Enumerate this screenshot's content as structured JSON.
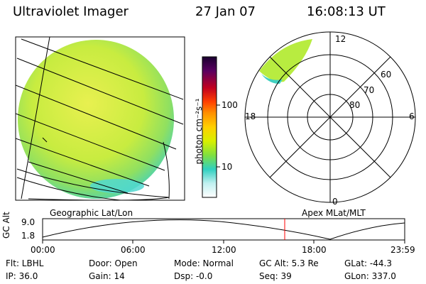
{
  "header": {
    "instrument": "Ultraviolet Imager",
    "date": "27 Jan 07",
    "time": "16:08:13 UT"
  },
  "colorbar": {
    "unit_label": "photon cm⁻²s⁻¹",
    "tick_100": "100",
    "tick_10": "10",
    "colors": [
      "#1a0030",
      "#5a0060",
      "#c00020",
      "#ff4000",
      "#ff9000",
      "#ffd000",
      "#d8f000",
      "#80e040",
      "#30d0c0",
      "#c0f0f0",
      "#ffffff"
    ]
  },
  "polar_plot": {
    "mlt_top": "12",
    "mlt_left": "18",
    "mlt_right": "6",
    "mlt_bottom": "0",
    "lat_60": "60",
    "lat_70": "70",
    "lat_80": "80"
  },
  "labels": {
    "left_panel": "Geographic Lat/Lon",
    "right_panel": "Apex MLat/MLT"
  },
  "altitude_plot": {
    "y_label": "GC Alt",
    "y_max": "9.0",
    "y_min": "1.8",
    "x_ticks": [
      "00:00",
      "06:00",
      "12:00",
      "18:00",
      "23:59"
    ],
    "marker_color": "#ff0000"
  },
  "info": {
    "filter": "Flt: LBHL",
    "ip": "IP: 36.0",
    "door": "Door: Open",
    "gain": "Gain: 14",
    "mode": "Mode: Normal",
    "dsp": "Dsp:   -0.0",
    "gc_alt": "GC Alt: 5.3 Re",
    "seq": "Seq: 39",
    "glat": "GLat: -44.3",
    "glon": "GLon: 337.0"
  }
}
